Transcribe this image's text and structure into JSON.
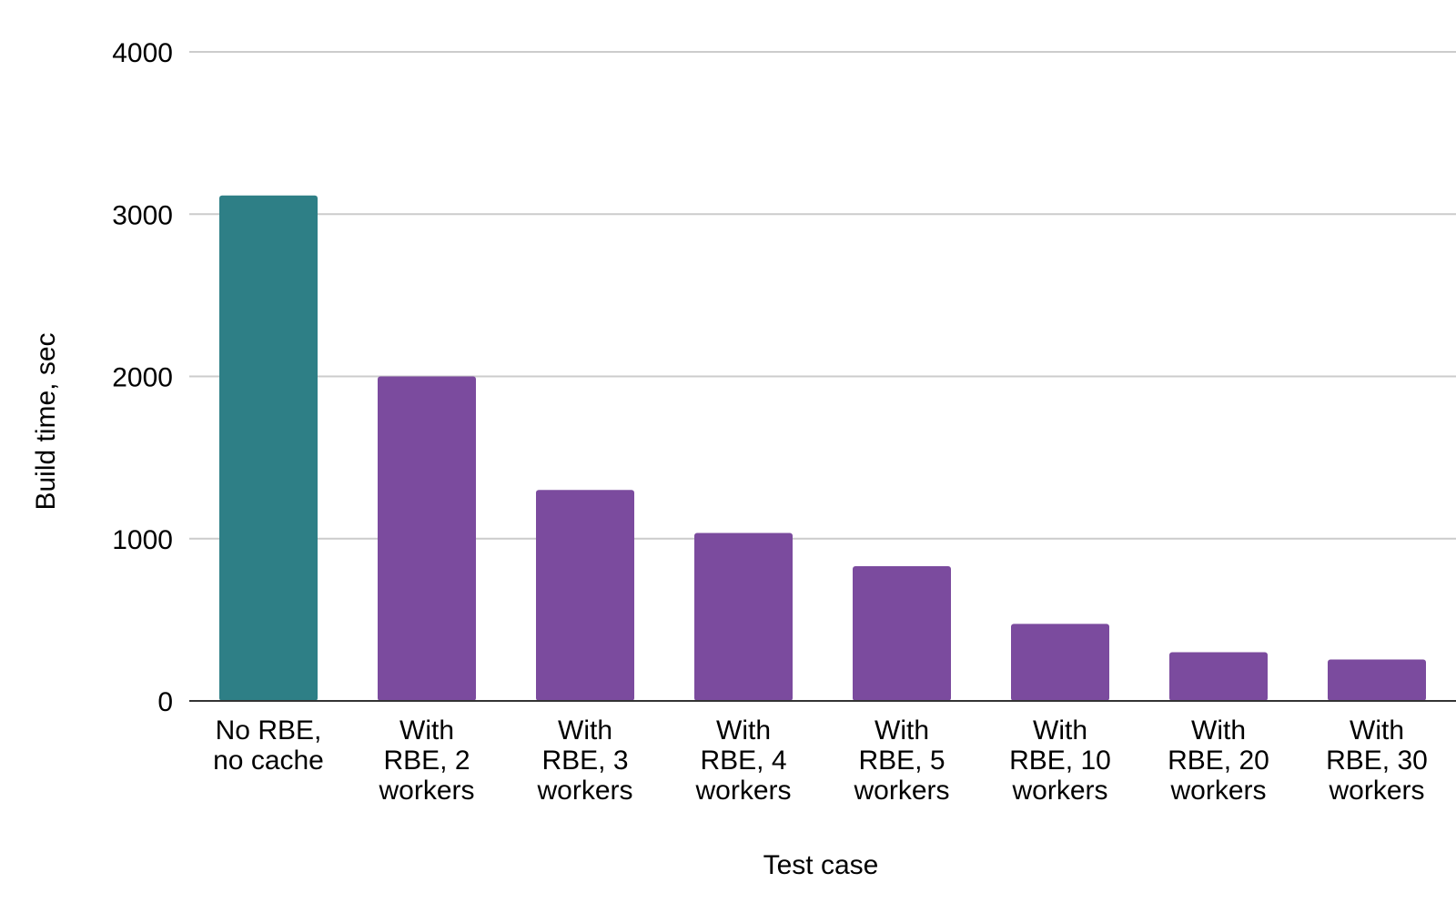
{
  "chart_data": {
    "type": "bar",
    "title": "",
    "xlabel": "Test case",
    "ylabel": "Build time, sec",
    "ylim": [
      0,
      4000
    ],
    "yticks": [
      "0",
      "1000",
      "2000",
      "3000",
      "4000"
    ],
    "grid": true,
    "legend": "none",
    "categories": [
      [
        "No RBE,",
        "no cache"
      ],
      [
        "With",
        "RBE, 2",
        "workers"
      ],
      [
        "With",
        "RBE, 3",
        "workers"
      ],
      [
        "With",
        "RBE, 4",
        "workers"
      ],
      [
        "With",
        "RBE, 5",
        "workers"
      ],
      [
        "With",
        "RBE, 10",
        "workers"
      ],
      [
        "With",
        "RBE, 20",
        "workers"
      ],
      [
        "With",
        "RBE, 30",
        "workers"
      ]
    ],
    "values": [
      3115,
      2000,
      1300,
      1035,
      830,
      475,
      300,
      255
    ],
    "bar_colors": [
      "#2e7f86",
      "#7b4b9e",
      "#7b4b9e",
      "#7b4b9e",
      "#7b4b9e",
      "#7b4b9e",
      "#7b4b9e",
      "#7b4b9e"
    ],
    "gridline_color": "#cccccc",
    "axis_color": "#333333"
  }
}
